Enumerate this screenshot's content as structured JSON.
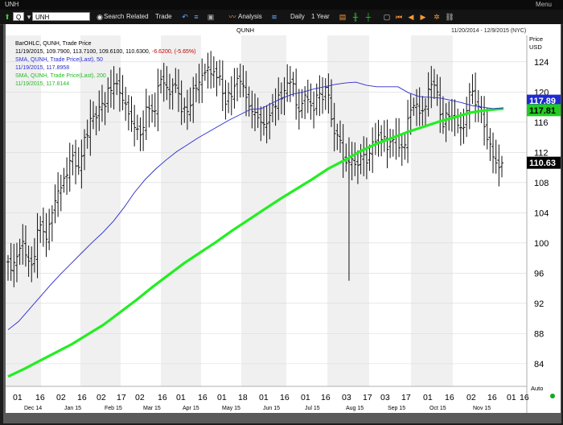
{
  "window": {
    "title": "UNH",
    "menu_label": "Menu"
  },
  "toolbar": {
    "symbol_prefix": "Q",
    "symbol": "UNH",
    "search_label": "Search",
    "related_label": "Related",
    "trade_label": "Trade",
    "analysis_label": "Analysis",
    "interval_label": "Daily",
    "range_label": "1 Year"
  },
  "header": {
    "center_title": "QUNH",
    "date_range": "11/20/2014 - 12/9/2015 (NYC)",
    "axis_title_1": "Price",
    "axis_title_2": "USD"
  },
  "legend": {
    "bar_title": "BarOHLC, QUNH, Trade Price",
    "bar_values": "11/19/2015, 109.7900, 113.7100, 109.6100, 110.6300,",
    "bar_change": "-6.6200, (-5.65%)",
    "sma50_title": "SMA, QUNH, Trade Price(Last), 50",
    "sma50_values": "11/19/2015, 117.8958",
    "sma200_title": "SMA, QUNH, Trade Price(Last), 200",
    "sma200_values": "11/19/2015, 117.8144"
  },
  "price_tags": {
    "sma50": "117.89",
    "sma200": "117.81",
    "last": "110.63",
    "sma50_color": "#1f2bd0",
    "sma200_color": "#22cc22",
    "last_color": "#000000"
  },
  "auto_label": "Auto",
  "chart_data": {
    "type": "bar",
    "y_ticks": [
      84,
      88,
      92,
      96,
      100,
      104,
      108,
      112,
      116,
      120,
      124
    ],
    "ylim": [
      81,
      127.5
    ],
    "x_day_labels": [
      "01",
      "16",
      "02",
      "16",
      "02",
      "17",
      "02",
      "16",
      "01",
      "16",
      "01",
      "18",
      "01",
      "16",
      "01",
      "16",
      "03",
      "17",
      "03",
      "17",
      "01",
      "16",
      "02",
      "16",
      "01",
      "16"
    ],
    "x_month_labels": [
      "Dec 14",
      "Jan 15",
      "Feb 15",
      "Mar 15",
      "Apr 15",
      "May 15",
      "Jun 15",
      "Jul 15",
      "Aug 15",
      "Sep 15",
      "Oct 15",
      "Nov 15"
    ],
    "series": [
      {
        "name": "BarOHLC, QUNH, Trade Price",
        "values": [
          97.5,
          96.4,
          97.4,
          98.2,
          99.3,
          100.2,
          98.4,
          97.6,
          97.1,
          98.2,
          101.7,
          102.4,
          101.5,
          100.5,
          102.5,
          104.0,
          105.6,
          106.9,
          107.3,
          108.6,
          109.0,
          110.9,
          111.6,
          110.2,
          110.0,
          111.5,
          114.0,
          114.2,
          116.5,
          116.8,
          116.6,
          118.0,
          118.5,
          118.1,
          120.5,
          120.2,
          121.1,
          121.1,
          119.9,
          118.9,
          118.4,
          117.1,
          116.1,
          115.3,
          115.1,
          114.3,
          115.3,
          118.0,
          117.8,
          117.5,
          117.5,
          120.8,
          121.7,
          121.2,
          120.6,
          119.7,
          120.9,
          120.9,
          119.8,
          117.4,
          118.0,
          117.4,
          118.2,
          120.5,
          120.5,
          121.3,
          122.2,
          122.6,
          123.3,
          122.4,
          122.7,
          121.9,
          122.1,
          119.8,
          118.4,
          119.9,
          119.4,
          120.8,
          121.8,
          121.4,
          120.8,
          119.3,
          118.1,
          117.4,
          117.3,
          116.6,
          116.0,
          115.7,
          115.8,
          116.9,
          118.3,
          118.1,
          119.6,
          119.1,
          120.2,
          121.2,
          121.3,
          121.1,
          118.3,
          117.4,
          118.5,
          119.6,
          119.0,
          118.2,
          117.6,
          119.6,
          119.8,
          119.0,
          120.6,
          119.6,
          116.4,
          114.5,
          114.3,
          113.6,
          111.1,
          110.6,
          110.7,
          111.1,
          110.4,
          110.3,
          111.5,
          111.7,
          110.6,
          111.9,
          113.4,
          113.4,
          114.3,
          113.7,
          114.1,
          112.4,
          113.4,
          113.7,
          114.2,
          112.6,
          112.7,
          113.0,
          116.5,
          117.6,
          118.2,
          118.4,
          117.2,
          117.5,
          118.1,
          120.4,
          121.0,
          120.9,
          120.0,
          117.0,
          115.4,
          117.2,
          116.8,
          116.6,
          116.6,
          115.6,
          115.3,
          115.3,
          117.5,
          120.0,
          120.1,
          118.3,
          118.1,
          117.4,
          115.4,
          113.7,
          113.1,
          111.4,
          110.6,
          110.0,
          110.6
        ]
      },
      {
        "name": "SMA, QUNH, Trade Price(Last), 50",
        "values": [
          88.5,
          89.6,
          91.2,
          92.8,
          94.4,
          95.9,
          97.3,
          98.7,
          100.1,
          101.4,
          102.9,
          104.7,
          106.7,
          108.4,
          109.8,
          111.0,
          112.1,
          113.0,
          113.9,
          114.7,
          115.5,
          116.3,
          117.0,
          117.7,
          117.8,
          118.5,
          119.2,
          119.7,
          120.0,
          120.4,
          120.7,
          121.0,
          121.2,
          121.3,
          120.9,
          120.7,
          120.7,
          120.7,
          119.9,
          119.4,
          119.3,
          119.2,
          118.9,
          118.6,
          118.2,
          118.0,
          117.8,
          117.9
        ]
      },
      {
        "name": "SMA, QUNH, Trade Price(Last), 200",
        "values": [
          82.3,
          83.3,
          84.4,
          85.5,
          86.6,
          87.9,
          89.2,
          90.8,
          92.4,
          94.1,
          95.7,
          97.3,
          98.7,
          100.1,
          101.6,
          103.0,
          104.4,
          105.8,
          107.1,
          108.4,
          109.8,
          110.9,
          112.1,
          113.1,
          113.9,
          114.7,
          115.4,
          116.1,
          116.7,
          117.3,
          117.6,
          117.8
        ]
      }
    ]
  }
}
